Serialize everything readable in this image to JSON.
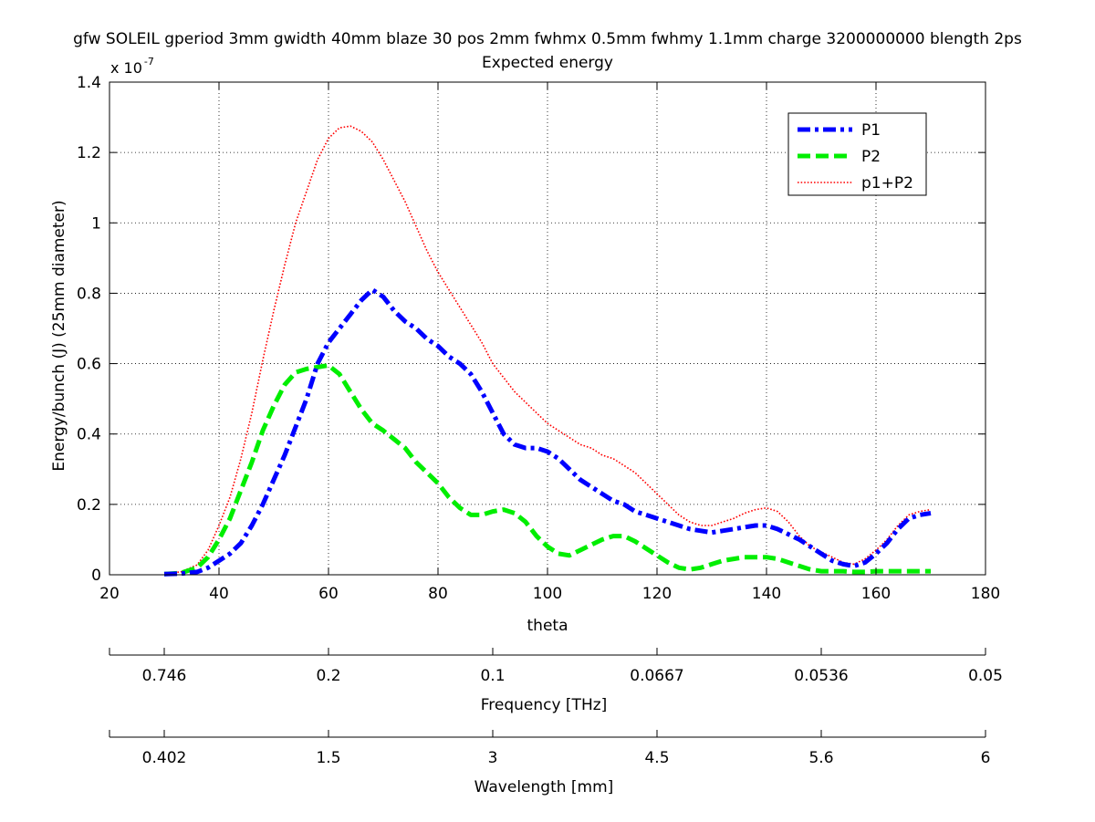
{
  "chart_data": {
    "type": "line",
    "title": "gfw SOLEIL gperiod 3mm gwidth 40mm blaze 30 pos 2mm fwhmx 0.5mm fwhmy 1.1mm charge 3200000000 blength 2ps",
    "subtitle": "Expected energy",
    "xlabel": "theta",
    "ylabel": "Energy/bunch (J) (25mm diameter)",
    "exponent_label": "x 10",
    "exponent_power": "-7",
    "xlim": [
      20,
      180
    ],
    "ylim": [
      0,
      1.4
    ],
    "xticks": [
      20,
      40,
      60,
      80,
      100,
      120,
      140,
      160,
      180
    ],
    "yticks": [
      0,
      0.2,
      0.4,
      0.6,
      0.8,
      1,
      1.2,
      1.4
    ],
    "grid": true,
    "legend_position": "top-right",
    "series": [
      {
        "name": "P1",
        "color": "#0000ff",
        "style": "dash-dot",
        "x": [
          30,
          33,
          36,
          38,
          40,
          42,
          44,
          46,
          48,
          50,
          52,
          54,
          56,
          58,
          60,
          62,
          64,
          66,
          68,
          70,
          72,
          74,
          76,
          78,
          80,
          82,
          84,
          86,
          88,
          90,
          92,
          94,
          96,
          98,
          100,
          102,
          104,
          106,
          108,
          110,
          112,
          114,
          116,
          118,
          120,
          122,
          124,
          126,
          128,
          130,
          132,
          134,
          136,
          138,
          140,
          142,
          144,
          146,
          148,
          150,
          152,
          154,
          156,
          158,
          160,
          162,
          164,
          166,
          168,
          170
        ],
        "y": [
          0.002,
          0.003,
          0.008,
          0.02,
          0.04,
          0.06,
          0.09,
          0.14,
          0.2,
          0.27,
          0.34,
          0.42,
          0.5,
          0.6,
          0.66,
          0.7,
          0.74,
          0.78,
          0.81,
          0.79,
          0.75,
          0.72,
          0.7,
          0.67,
          0.65,
          0.62,
          0.6,
          0.57,
          0.52,
          0.46,
          0.4,
          0.37,
          0.36,
          0.36,
          0.35,
          0.33,
          0.3,
          0.27,
          0.25,
          0.23,
          0.21,
          0.2,
          0.18,
          0.17,
          0.16,
          0.15,
          0.14,
          0.13,
          0.125,
          0.12,
          0.125,
          0.13,
          0.135,
          0.14,
          0.14,
          0.13,
          0.115,
          0.1,
          0.08,
          0.06,
          0.04,
          0.03,
          0.025,
          0.035,
          0.06,
          0.09,
          0.13,
          0.16,
          0.17,
          0.175
        ]
      },
      {
        "name": "P2",
        "color": "#00ee00",
        "style": "dashed",
        "x": [
          30,
          33,
          36,
          38,
          40,
          42,
          44,
          46,
          48,
          50,
          52,
          54,
          56,
          58,
          60,
          62,
          64,
          66,
          68,
          70,
          72,
          74,
          76,
          78,
          80,
          82,
          84,
          86,
          88,
          90,
          92,
          94,
          96,
          98,
          100,
          102,
          104,
          106,
          108,
          110,
          112,
          114,
          116,
          118,
          120,
          122,
          124,
          126,
          128,
          130,
          132,
          134,
          136,
          138,
          140,
          142,
          144,
          146,
          148,
          150,
          152,
          154,
          156,
          158,
          160,
          165,
          170
        ],
        "y": [
          0.002,
          0.005,
          0.02,
          0.05,
          0.1,
          0.16,
          0.24,
          0.32,
          0.41,
          0.48,
          0.54,
          0.575,
          0.585,
          0.59,
          0.595,
          0.57,
          0.52,
          0.47,
          0.43,
          0.41,
          0.385,
          0.36,
          0.32,
          0.29,
          0.26,
          0.22,
          0.19,
          0.17,
          0.17,
          0.18,
          0.185,
          0.175,
          0.15,
          0.11,
          0.08,
          0.06,
          0.055,
          0.07,
          0.085,
          0.1,
          0.11,
          0.11,
          0.095,
          0.075,
          0.055,
          0.035,
          0.02,
          0.015,
          0.02,
          0.03,
          0.04,
          0.045,
          0.05,
          0.05,
          0.05,
          0.045,
          0.035,
          0.025,
          0.015,
          0.01,
          0.01,
          0.01,
          0.008,
          0.008,
          0.01,
          0.01,
          0.01
        ]
      },
      {
        "name": "p1+P2",
        "color": "#ff0000",
        "style": "dotted",
        "x": [
          30,
          33,
          36,
          38,
          40,
          42,
          44,
          46,
          48,
          50,
          52,
          54,
          56,
          58,
          60,
          62,
          64,
          66,
          68,
          70,
          72,
          74,
          76,
          78,
          80,
          82,
          84,
          86,
          88,
          90,
          92,
          94,
          96,
          98,
          100,
          102,
          104,
          106,
          108,
          110,
          112,
          114,
          116,
          118,
          120,
          122,
          124,
          126,
          128,
          130,
          132,
          134,
          136,
          138,
          140,
          142,
          144,
          146,
          148,
          150,
          152,
          154,
          156,
          158,
          160,
          162,
          164,
          166,
          168,
          170
        ],
        "y": [
          0.004,
          0.008,
          0.028,
          0.07,
          0.14,
          0.22,
          0.33,
          0.46,
          0.61,
          0.75,
          0.88,
          1.0,
          1.09,
          1.18,
          1.24,
          1.27,
          1.275,
          1.26,
          1.23,
          1.18,
          1.12,
          1.06,
          0.99,
          0.92,
          0.86,
          0.81,
          0.76,
          0.71,
          0.66,
          0.6,
          0.56,
          0.52,
          0.49,
          0.46,
          0.43,
          0.41,
          0.39,
          0.37,
          0.36,
          0.34,
          0.33,
          0.31,
          0.29,
          0.26,
          0.23,
          0.2,
          0.17,
          0.15,
          0.14,
          0.14,
          0.15,
          0.16,
          0.175,
          0.185,
          0.19,
          0.18,
          0.15,
          0.11,
          0.08,
          0.065,
          0.05,
          0.035,
          0.03,
          0.045,
          0.07,
          0.1,
          0.14,
          0.17,
          0.18,
          0.185
        ]
      }
    ],
    "secondary_axes": [
      {
        "name": "frequency",
        "label": "Frequency [THz]",
        "tick_positions_theta": [
          30,
          60,
          90,
          120,
          150,
          180
        ],
        "tick_labels": [
          "0.746",
          "0.2",
          "0.1",
          "0.0667",
          "0.0536",
          "0.05"
        ]
      },
      {
        "name": "wavelength",
        "label": "Wavelength [mm]",
        "tick_positions_theta": [
          30,
          60,
          90,
          120,
          150,
          180
        ],
        "tick_labels": [
          "0.402",
          "1.5",
          "3",
          "4.5",
          "5.6",
          "6"
        ]
      }
    ]
  }
}
